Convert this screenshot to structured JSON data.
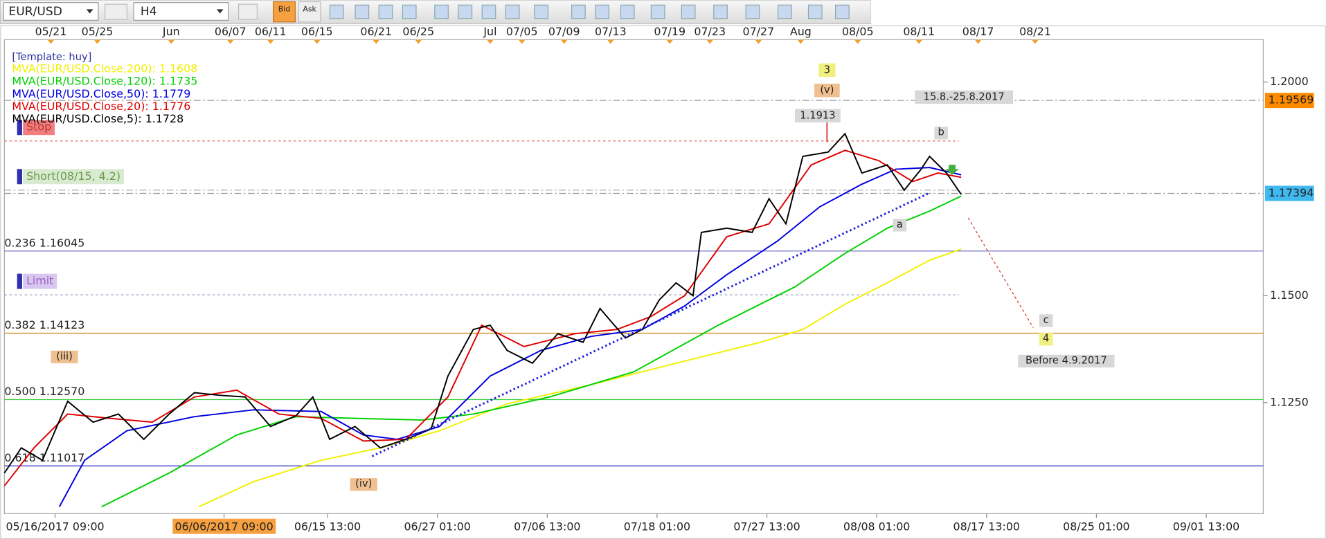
{
  "toolbar": {
    "symbol": "EUR/USD",
    "timeframe": "H4",
    "bid": "Bid",
    "ask": "Ask"
  },
  "chart_data": {
    "type": "line",
    "title": "[Template: huy]",
    "xlim": [
      0,
      596
    ],
    "ylim": [
      1.099,
      1.2099
    ],
    "yticks": [
      {
        "value": 1.125,
        "label": "1.1250"
      },
      {
        "value": 1.15,
        "label": "1.1500"
      },
      {
        "value": 1.2,
        "label": "1.2000"
      }
    ],
    "xticks": [
      {
        "value": 24,
        "label": "05/16/2017 09:00"
      },
      {
        "value": 104,
        "label": "06/06/2017 09:00"
      },
      {
        "value": 153,
        "label": "06/15 13:00"
      },
      {
        "value": 205,
        "label": "06/27 01:00"
      },
      {
        "value": 257,
        "label": "07/06 13:00"
      },
      {
        "value": 309,
        "label": "07/18 01:00"
      },
      {
        "value": 361,
        "label": "07/27 13:00"
      },
      {
        "value": 413,
        "label": "08/08 01:00"
      },
      {
        "value": 465,
        "label": "08/17 13:00"
      },
      {
        "value": 517,
        "label": "08/25 01:00"
      },
      {
        "value": 569,
        "label": "09/01 13:00"
      }
    ],
    "top_xticks": [
      {
        "value": 22,
        "label": "05/21"
      },
      {
        "value": 44,
        "label": "05/25"
      },
      {
        "value": 79,
        "label": "Jun"
      },
      {
        "value": 107,
        "label": "06/07"
      },
      {
        "value": 126,
        "label": "06/11"
      },
      {
        "value": 148,
        "label": "06/15"
      },
      {
        "value": 176,
        "label": "06/21"
      },
      {
        "value": 196,
        "label": "06/25"
      },
      {
        "value": 230,
        "label": "Jul"
      },
      {
        "value": 245,
        "label": "07/05"
      },
      {
        "value": 265,
        "label": "07/09"
      },
      {
        "value": 287,
        "label": "07/13"
      },
      {
        "value": 315,
        "label": "07/19"
      },
      {
        "value": 334,
        "label": "07/23"
      },
      {
        "value": 357,
        "label": "07/27"
      },
      {
        "value": 377,
        "label": "Aug"
      },
      {
        "value": 404,
        "label": "08/05"
      },
      {
        "value": 433,
        "label": "08/11"
      },
      {
        "value": 461,
        "label": "08/17"
      },
      {
        "value": 488,
        "label": "08/21"
      }
    ],
    "series": [
      {
        "name": "MVA(EUR/USD.Close,200): 1.1608",
        "color": "#f0f000",
        "x": [
          92,
          118,
          150,
          178,
          206,
          238,
          278,
          318,
          358,
          378,
          398,
          418,
          438,
          453
        ],
        "values": [
          1.1006,
          1.1065,
          1.1115,
          1.1144,
          1.1184,
          1.1247,
          1.1292,
          1.1342,
          1.1391,
          1.1421,
          1.148,
          1.153,
          1.1583,
          1.1609
        ]
      },
      {
        "name": "MVA(EUR/USD.Close,120): 1.1735",
        "color": "#00d000",
        "x": [
          46,
          78,
          110,
          138,
          166,
          198,
          222,
          258,
          298,
          338,
          374,
          398,
          418,
          438,
          453
        ],
        "values": [
          1.1006,
          1.1085,
          1.1174,
          1.1217,
          1.1213,
          1.1209,
          1.1223,
          1.1263,
          1.1322,
          1.1431,
          1.152,
          1.1599,
          1.1658,
          1.1698,
          1.1733
        ]
      },
      {
        "name": "MVA(EUR/USD.Close,50): 1.1779",
        "color": "#0000e0",
        "x": [
          26,
          38,
          58,
          90,
          118,
          150,
          170,
          186,
          206,
          230,
          254,
          278,
          302,
          322,
          342,
          366,
          386,
          406,
          422,
          438,
          453
        ],
        "values": [
          1.1006,
          1.1115,
          1.1184,
          1.1217,
          1.1233,
          1.1229,
          1.1174,
          1.1164,
          1.1194,
          1.1312,
          1.1372,
          1.1405,
          1.1421,
          1.1476,
          1.1549,
          1.1628,
          1.1708,
          1.1761,
          1.1796,
          1.18,
          1.1783
        ]
      },
      {
        "name": "MVA(EUR/USD.Close,20): 1.1776",
        "color": "#e00000",
        "x": [
          0,
          14,
          30,
          50,
          70,
          90,
          110,
          130,
          150,
          170,
          190,
          210,
          226,
          246,
          270,
          290,
          306,
          322,
          342,
          362,
          382,
          398,
          414,
          430,
          442,
          453
        ],
        "values": [
          1.1055,
          1.1144,
          1.1223,
          1.1213,
          1.1204,
          1.1263,
          1.1279,
          1.1223,
          1.1213,
          1.116,
          1.1164,
          1.1263,
          1.1431,
          1.1381,
          1.1411,
          1.1421,
          1.1451,
          1.15,
          1.1638,
          1.1668,
          1.1806,
          1.184,
          1.1816,
          1.1767,
          1.1787,
          1.1777
        ]
      },
      {
        "name": "MVA(EUR/USD.Close,5): 1.1728",
        "color": "#000000",
        "x": [
          0,
          8,
          18,
          30,
          42,
          54,
          66,
          78,
          90,
          102,
          114,
          126,
          138,
          146,
          154,
          166,
          178,
          190,
          202,
          210,
          222,
          230,
          238,
          250,
          262,
          274,
          282,
          294,
          302,
          310,
          318,
          326,
          330,
          342,
          354,
          362,
          370,
          378,
          390,
          398,
          406,
          418,
          426,
          434,
          438,
          446,
          453
        ],
        "values": [
          1.1085,
          1.1144,
          1.1115,
          1.1253,
          1.1204,
          1.1223,
          1.1164,
          1.1223,
          1.1273,
          1.1267,
          1.1263,
          1.1194,
          1.1219,
          1.1263,
          1.1164,
          1.1194,
          1.1144,
          1.1164,
          1.1188,
          1.1312,
          1.1421,
          1.1431,
          1.1372,
          1.1342,
          1.1411,
          1.1391,
          1.147,
          1.1401,
          1.1421,
          1.149,
          1.153,
          1.15,
          1.1648,
          1.1658,
          1.1648,
          1.1727,
          1.1668,
          1.1826,
          1.1836,
          1.1879,
          1.1787,
          1.1806,
          1.1747,
          1.1796,
          1.1826,
          1.1787,
          1.1737
        ]
      }
    ],
    "levels": [
      {
        "label": "0.236 1.16045",
        "value": 1.16045,
        "color": "#6060c0"
      },
      {
        "label": "0.382 1.14123",
        "value": 1.14123,
        "color": "#d08000"
      },
      {
        "label": "0.500 1.12570",
        "value": 1.1257,
        "color": "#40d040"
      },
      {
        "label": "0.618 1.11017",
        "value": 1.11017,
        "color": "#2020c0"
      }
    ],
    "orders": [
      {
        "label": "Stop",
        "value": 1.1862,
        "color": "#e06060"
      },
      {
        "label": "Short(08/15, 4.2)",
        "value": 1.1747,
        "color": "#a0a0a0"
      },
      {
        "label": "Limit",
        "value": 1.1502,
        "color": "#a0a0c0"
      }
    ],
    "price_labels": [
      {
        "label": "1.19569",
        "value": 1.19569,
        "color": "#ff8c00"
      },
      {
        "label": "1.17394",
        "value": 1.17394,
        "color": "#40b8f0"
      }
    ],
    "annotations": [
      "3",
      "(v)",
      "1.1913",
      "15.8.-25.8.2017",
      "b",
      "a",
      "c",
      "4",
      "Before 4.9.2017",
      "(iii)",
      "(iv)"
    ]
  }
}
